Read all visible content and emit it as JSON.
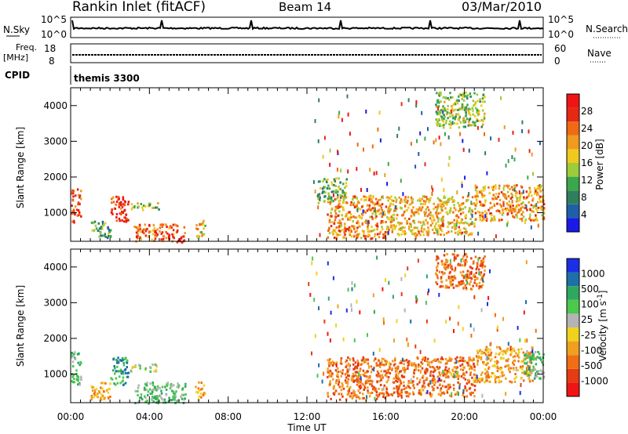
{
  "header": {
    "station": "Rankin Inlet (fitACF)",
    "beam": "Beam 14",
    "date": "03/Mar/2010"
  },
  "top_panels": {
    "nsky_label": "N.Sky",
    "nsky_ticks": [
      "10^5",
      "10^0"
    ],
    "nsearch_label": "N.Search",
    "nsearch_ticks": [
      "10^5",
      "10^0"
    ],
    "freq_label_1": "Freq.",
    "freq_label_2": "[MHz]",
    "freq_ticks": [
      "18",
      "8"
    ],
    "nave_label": "Nave",
    "nave_ticks": [
      "60",
      "0"
    ],
    "cpid_label": "CPID",
    "cpid_value": "themis 3300"
  },
  "colors": {
    "power": [
      "#1a1ae6",
      "#1f5fa8",
      "#2f7f5f",
      "#3aa84a",
      "#9ccc3a",
      "#f0c81e",
      "#f09a1e",
      "#f06a14",
      "#e62814",
      "#f01414"
    ],
    "velocity": [
      "#1a2fe6",
      "#1f6fa8",
      "#2fa85f",
      "#4cc84c",
      "#b4b4b4",
      "#f0d21e",
      "#f0a01e",
      "#f06e14",
      "#e63c14",
      "#f01414"
    ]
  },
  "chart_data": [
    {
      "type": "heatmap",
      "name": "Power",
      "ylabel": "Slant Range [km]",
      "yticks": [
        "1000",
        "2000",
        "3000",
        "4000"
      ],
      "ylim": [
        200,
        4500
      ],
      "xlim": [
        0,
        24
      ],
      "colorbar_label": "Power [dB]",
      "colorbar_ticks": [
        "4",
        "8",
        "12",
        "16",
        "20",
        "24",
        "28"
      ],
      "colorbar_range": [
        0,
        32
      ],
      "regions": [
        {
          "t": [
            0.0,
            0.5
          ],
          "r": [
            700,
            1700
          ],
          "v": 26
        },
        {
          "t": [
            2.0,
            2.9
          ],
          "r": [
            700,
            1500
          ],
          "v": 29
        },
        {
          "t": [
            3.2,
            5.8
          ],
          "r": [
            200,
            700
          ],
          "v": 26
        },
        {
          "t": [
            3.0,
            4.5
          ],
          "r": [
            1100,
            1300
          ],
          "v": 14
        },
        {
          "t": [
            6.3,
            6.8
          ],
          "r": [
            300,
            800
          ],
          "v": 18
        },
        {
          "t": [
            13.0,
            16.0
          ],
          "r": [
            300,
            1500
          ],
          "v": 22
        },
        {
          "t": [
            16.0,
            20.5
          ],
          "r": [
            400,
            1500
          ],
          "v": 20
        },
        {
          "t": [
            20.5,
            24.0
          ],
          "r": [
            800,
            1800
          ],
          "v": 22
        },
        {
          "t": [
            12.5,
            14.0
          ],
          "r": [
            1300,
            2000
          ],
          "v": 12
        },
        {
          "t": [
            18.5,
            21.0
          ],
          "r": [
            3400,
            4400
          ],
          "v": 14
        },
        {
          "t": [
            1.0,
            2.0
          ],
          "r": [
            300,
            800
          ],
          "v": 10
        }
      ]
    },
    {
      "type": "heatmap",
      "name": "Velocity",
      "ylabel": "Slant Range [km]",
      "yticks": [
        "1000",
        "2000",
        "3000",
        "4000"
      ],
      "ylim": [
        200,
        4500
      ],
      "xlim": [
        0,
        24
      ],
      "xlabel": "Time UT",
      "xticks": [
        "00:00",
        "04:00",
        "08:00",
        "12:00",
        "16:00",
        "20:00",
        "00:00"
      ],
      "colorbar_label": "Velocity [m s^-1]",
      "colorbar_ticks": [
        "1000",
        "500",
        "100",
        "25",
        "-25",
        "-100",
        "-500",
        "-1000"
      ],
      "regions": [
        {
          "t": [
            0.0,
            0.5
          ],
          "r": [
            700,
            1700
          ],
          "v": 3
        },
        {
          "t": [
            2.0,
            2.9
          ],
          "r": [
            700,
            1500
          ],
          "v": 2
        },
        {
          "t": [
            3.2,
            5.8
          ],
          "r": [
            200,
            800
          ],
          "v": 3
        },
        {
          "t": [
            3.0,
            4.5
          ],
          "r": [
            1100,
            1300
          ],
          "v": 4
        },
        {
          "t": [
            6.3,
            6.8
          ],
          "r": [
            300,
            800
          ],
          "v": 6
        },
        {
          "t": [
            13.0,
            16.0
          ],
          "r": [
            300,
            1500
          ],
          "v": 7
        },
        {
          "t": [
            16.0,
            20.5
          ],
          "r": [
            400,
            1500
          ],
          "v": 7
        },
        {
          "t": [
            20.5,
            23.5
          ],
          "r": [
            800,
            1800
          ],
          "v": 6
        },
        {
          "t": [
            23.0,
            24.0
          ],
          "r": [
            900,
            1700
          ],
          "v": 3
        },
        {
          "t": [
            18.5,
            21.0
          ],
          "r": [
            3400,
            4400
          ],
          "v": 7
        },
        {
          "t": [
            1.0,
            2.0
          ],
          "r": [
            300,
            800
          ],
          "v": 6
        }
      ]
    }
  ]
}
